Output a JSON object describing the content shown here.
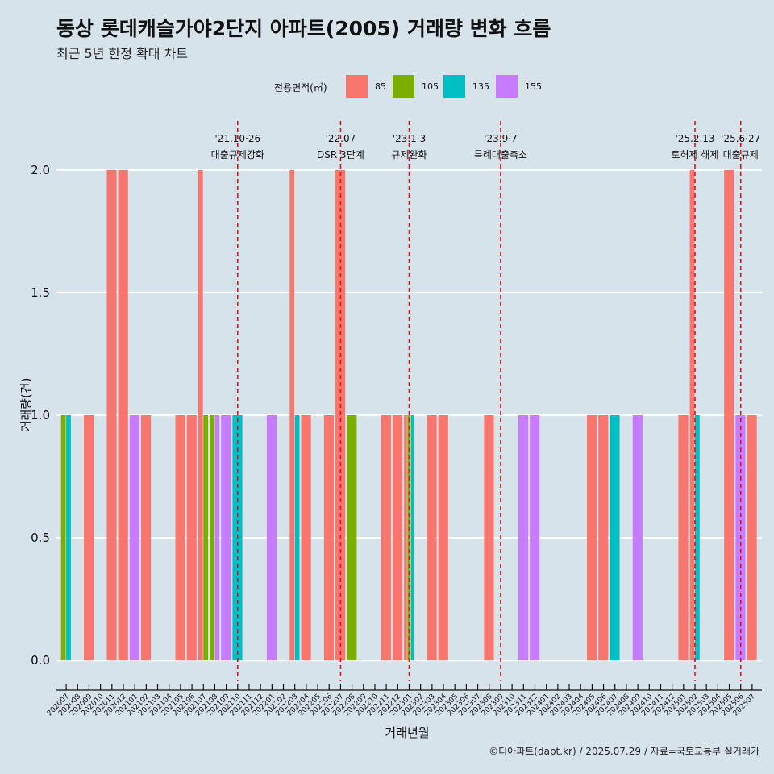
{
  "title": "동상 롯데캐슬가야2단지 아파트(2005) 거래량 변화 흐름",
  "subtitle": "최근 5년 한정 확대 차트",
  "caption": "©디아파트(dapt.kr) / 2025.07.29 / 자료=국토교통부 실거래가",
  "legend": {
    "title": "전용면적(㎡)",
    "items": [
      {
        "label": "85",
        "color": "#F8766D"
      },
      {
        "label": "105",
        "color": "#7CAE00"
      },
      {
        "label": "135",
        "color": "#00BFC4"
      },
      {
        "label": "155",
        "color": "#C77CFF"
      }
    ]
  },
  "chart_data": {
    "type": "bar",
    "title": "동상 롯데캐슬가야2단지 아파트(2005) 거래량 변화 흐름",
    "subtitle": "최근 5년 한정 확대 차트",
    "xlabel": "거래년월",
    "ylabel": "거래량(건)",
    "ylim": [
      -0.085,
      2.2
    ],
    "yticks": [
      0.0,
      0.5,
      1.0,
      1.5,
      2.0
    ],
    "ytick_labels": [
      "0.0",
      "0.5",
      "1.0",
      "1.5",
      "2.0"
    ],
    "grid": true,
    "legend_position": "top",
    "categories": [
      "202007",
      "202008",
      "202009",
      "202010",
      "202011",
      "202012",
      "202101",
      "202102",
      "202103",
      "202104",
      "202105",
      "202106",
      "202107",
      "202108",
      "202109",
      "202110",
      "202111",
      "202112",
      "202201",
      "202202",
      "202203",
      "202204",
      "202205",
      "202206",
      "202207",
      "202208",
      "202209",
      "202210",
      "202211",
      "202212",
      "202301",
      "202302",
      "202303",
      "202304",
      "202305",
      "202306",
      "202307",
      "202308",
      "202309",
      "202310",
      "202311",
      "202312",
      "202401",
      "202402",
      "202403",
      "202404",
      "202405",
      "202406",
      "202407",
      "202408",
      "202409",
      "202410",
      "202411",
      "202412",
      "202501",
      "202502",
      "202503",
      "202504",
      "202505",
      "202506",
      "202507"
    ],
    "series": [
      {
        "name": "85",
        "color": "#F8766D",
        "values": [
          0,
          0,
          1,
          0,
          2,
          2,
          0,
          1,
          0,
          0,
          1,
          1,
          2,
          0,
          0,
          0,
          0,
          0,
          0,
          0,
          2,
          1,
          0,
          1,
          2,
          0,
          0,
          0,
          1,
          1,
          1,
          0,
          1,
          1,
          0,
          0,
          0,
          1,
          0,
          0,
          0,
          0,
          0,
          0,
          0,
          0,
          1,
          1,
          0,
          0,
          0,
          0,
          0,
          0,
          1,
          2,
          0,
          0,
          2,
          0,
          1
        ]
      },
      {
        "name": "105",
        "color": "#7CAE00",
        "values": [
          1,
          0,
          0,
          0,
          0,
          0,
          0,
          0,
          0,
          0,
          0,
          0,
          1,
          1,
          0,
          0,
          0,
          0,
          0,
          0,
          0,
          0,
          0,
          0,
          0,
          1,
          0,
          0,
          0,
          0,
          1,
          0,
          0,
          0,
          0,
          0,
          0,
          0,
          0,
          0,
          0,
          0,
          0,
          0,
          0,
          0,
          0,
          0,
          0,
          0,
          0,
          0,
          0,
          0,
          0,
          0,
          0,
          0,
          0,
          0,
          0
        ]
      },
      {
        "name": "135",
        "color": "#00BFC4",
        "values": [
          1,
          0,
          0,
          0,
          0,
          0,
          0,
          0,
          0,
          0,
          0,
          0,
          0,
          0,
          0,
          1,
          0,
          0,
          0,
          0,
          1,
          0,
          0,
          0,
          0,
          0,
          0,
          0,
          0,
          0,
          1,
          0,
          0,
          0,
          0,
          0,
          0,
          0,
          0,
          0,
          0,
          0,
          0,
          0,
          0,
          0,
          0,
          0,
          1,
          0,
          0,
          0,
          0,
          0,
          0,
          1,
          0,
          0,
          0,
          0,
          0
        ]
      },
      {
        "name": "155",
        "color": "#C77CFF",
        "values": [
          0,
          0,
          0,
          0,
          0,
          0,
          1,
          0,
          0,
          0,
          0,
          0,
          0,
          1,
          1,
          0,
          0,
          0,
          1,
          0,
          0,
          0,
          0,
          0,
          0,
          0,
          0,
          0,
          0,
          0,
          0,
          0,
          0,
          0,
          0,
          0,
          0,
          0,
          0,
          0,
          1,
          1,
          0,
          0,
          0,
          0,
          0,
          0,
          0,
          0,
          1,
          0,
          0,
          0,
          0,
          0,
          0,
          0,
          0,
          1,
          0
        ]
      }
    ],
    "annotations": [
      {
        "x": "202110",
        "date": "'21.10·26",
        "label": "대출규제강화"
      },
      {
        "x": "202207",
        "date": "'22.07",
        "label": "DSR 3단계"
      },
      {
        "x": "202301",
        "date": "'23.1·3",
        "label": "규제완화"
      },
      {
        "x": "202309",
        "date": "'23.9·7",
        "label": "특례대출축소"
      },
      {
        "x": "202502",
        "date": "'25.2.13",
        "label": "토허제 해제"
      },
      {
        "x": "202506",
        "date": "'25.6·27",
        "label": "대출규제"
      }
    ]
  }
}
